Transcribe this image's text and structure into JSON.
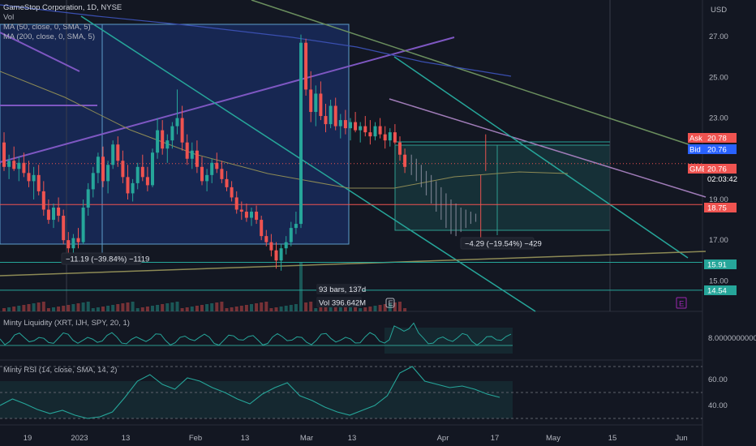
{
  "header": {
    "symbol_line": "GameStop Corporation, 1D, NYSE",
    "vol_label": "Vol",
    "ma50": "MA (50, close, 0, SMA, 5)",
    "ma200": "MA (200, close, 0, SMA, 5)",
    "currency": "USD"
  },
  "price_tags": {
    "ask_label": "Ask",
    "ask_value": "20.78",
    "bid_label": "Bid",
    "bid_value": "20.76",
    "gme_label": "GME",
    "gme_value": "20.76",
    "countdown": "02:03:42",
    "level_1875": "18.75",
    "level_1591": "15.91",
    "level_1454": "14.54"
  },
  "annotations": {
    "range1": "−11.19 (−39.84%) −1119",
    "range2": "−4.29 (−19.54%) −429",
    "bars": "93 bars, 137d",
    "vol": "Vol 396.642M",
    "earnings_icon": "E",
    "earnings_right": "E"
  },
  "indicators": {
    "liquidity_title": "Minty Liquidity (XRT, IJH, SPY, 20, 1)",
    "liquidity_value": "8.0000000000",
    "rsi_title": "Minty RSI (14, close, SMA, 14, 2)",
    "rsi_ticks": [
      "60.00",
      "40.00"
    ]
  },
  "colors": {
    "up": "#26a69a",
    "down": "#ef5350",
    "background": "#131722",
    "ma50": "#8d8a55",
    "ma200": "#3a4fb0",
    "accent": "#2962ff"
  },
  "chart_data": {
    "type": "candlestick",
    "title": "GameStop Corporation, 1D, NYSE",
    "ylabel": "USD",
    "ylim": [
      13.5,
      28.8
    ],
    "y_ticks": [
      27.0,
      25.0,
      23.0,
      19.0,
      17.0,
      15.0
    ],
    "x_ticks": [
      "19",
      "2023",
      "13",
      "Feb",
      "13",
      "Mar",
      "13",
      "Apr",
      "17",
      "May",
      "15",
      "Jun"
    ],
    "candles": [
      {
        "o": 21.8,
        "h": 22.3,
        "l": 20.4,
        "c": 20.6
      },
      {
        "o": 20.6,
        "h": 21.2,
        "l": 20.0,
        "c": 20.9
      },
      {
        "o": 20.9,
        "h": 21.6,
        "l": 20.4,
        "c": 20.5
      },
      {
        "o": 20.5,
        "h": 21.1,
        "l": 19.9,
        "c": 20.8
      },
      {
        "o": 20.8,
        "h": 21.3,
        "l": 20.1,
        "c": 20.3
      },
      {
        "o": 20.3,
        "h": 20.9,
        "l": 19.6,
        "c": 19.9
      },
      {
        "o": 19.9,
        "h": 20.6,
        "l": 19.0,
        "c": 20.2
      },
      {
        "o": 20.2,
        "h": 20.7,
        "l": 19.2,
        "c": 19.4
      },
      {
        "o": 19.4,
        "h": 19.9,
        "l": 18.2,
        "c": 18.5
      },
      {
        "o": 18.5,
        "h": 19.0,
        "l": 17.8,
        "c": 18.0
      },
      {
        "o": 18.0,
        "h": 18.8,
        "l": 17.6,
        "c": 18.6
      },
      {
        "o": 18.6,
        "h": 19.1,
        "l": 17.9,
        "c": 18.2
      },
      {
        "o": 18.2,
        "h": 18.5,
        "l": 16.8,
        "c": 17.0
      },
      {
        "o": 17.0,
        "h": 17.4,
        "l": 16.2,
        "c": 16.6
      },
      {
        "o": 16.6,
        "h": 17.3,
        "l": 16.3,
        "c": 17.1
      },
      {
        "o": 17.1,
        "h": 17.6,
        "l": 16.6,
        "c": 16.9
      },
      {
        "o": 16.9,
        "h": 19.0,
        "l": 16.8,
        "c": 18.6
      },
      {
        "o": 18.6,
        "h": 19.8,
        "l": 18.2,
        "c": 19.5
      },
      {
        "o": 19.5,
        "h": 20.6,
        "l": 19.1,
        "c": 20.3
      },
      {
        "o": 20.3,
        "h": 21.3,
        "l": 19.8,
        "c": 21.1
      },
      {
        "o": 21.1,
        "h": 21.6,
        "l": 19.6,
        "c": 19.9
      },
      {
        "o": 19.9,
        "h": 20.9,
        "l": 19.3,
        "c": 20.7
      },
      {
        "o": 20.7,
        "h": 21.9,
        "l": 20.5,
        "c": 21.7
      },
      {
        "o": 21.7,
        "h": 22.1,
        "l": 20.6,
        "c": 20.9
      },
      {
        "o": 20.9,
        "h": 21.4,
        "l": 19.8,
        "c": 20.1
      },
      {
        "o": 20.1,
        "h": 20.7,
        "l": 19.0,
        "c": 19.3
      },
      {
        "o": 19.3,
        "h": 20.0,
        "l": 18.9,
        "c": 19.8
      },
      {
        "o": 19.8,
        "h": 20.8,
        "l": 19.5,
        "c": 20.6
      },
      {
        "o": 20.6,
        "h": 21.2,
        "l": 19.9,
        "c": 20.1
      },
      {
        "o": 20.1,
        "h": 20.6,
        "l": 19.4,
        "c": 19.7
      },
      {
        "o": 19.7,
        "h": 21.5,
        "l": 19.6,
        "c": 21.3
      },
      {
        "o": 21.3,
        "h": 23.0,
        "l": 21.0,
        "c": 22.4
      },
      {
        "o": 22.4,
        "h": 22.9,
        "l": 21.2,
        "c": 21.5
      },
      {
        "o": 21.5,
        "h": 22.2,
        "l": 20.8,
        "c": 21.9
      },
      {
        "o": 21.9,
        "h": 22.8,
        "l": 21.5,
        "c": 22.6
      },
      {
        "o": 22.6,
        "h": 24.4,
        "l": 22.2,
        "c": 23.0
      },
      {
        "o": 23.0,
        "h": 23.6,
        "l": 21.4,
        "c": 21.8
      },
      {
        "o": 21.8,
        "h": 22.2,
        "l": 20.7,
        "c": 21.0
      },
      {
        "o": 21.0,
        "h": 21.8,
        "l": 20.5,
        "c": 21.4
      },
      {
        "o": 21.4,
        "h": 21.9,
        "l": 20.3,
        "c": 20.6
      },
      {
        "o": 20.6,
        "h": 21.1,
        "l": 19.7,
        "c": 19.9
      },
      {
        "o": 19.9,
        "h": 20.5,
        "l": 19.4,
        "c": 20.2
      },
      {
        "o": 20.2,
        "h": 21.0,
        "l": 19.8,
        "c": 20.8
      },
      {
        "o": 20.8,
        "h": 21.3,
        "l": 20.3,
        "c": 20.5
      },
      {
        "o": 20.5,
        "h": 20.9,
        "l": 19.8,
        "c": 20.0
      },
      {
        "o": 20.0,
        "h": 20.4,
        "l": 19.4,
        "c": 19.6
      },
      {
        "o": 19.6,
        "h": 19.9,
        "l": 18.9,
        "c": 19.1
      },
      {
        "o": 19.1,
        "h": 19.4,
        "l": 18.3,
        "c": 18.5
      },
      {
        "o": 18.5,
        "h": 18.9,
        "l": 18.0,
        "c": 18.4
      },
      {
        "o": 18.4,
        "h": 18.8,
        "l": 17.9,
        "c": 18.1
      },
      {
        "o": 18.1,
        "h": 18.6,
        "l": 17.7,
        "c": 18.4
      },
      {
        "o": 18.4,
        "h": 18.7,
        "l": 17.8,
        "c": 18.0
      },
      {
        "o": 18.0,
        "h": 18.2,
        "l": 17.0,
        "c": 17.2
      },
      {
        "o": 17.2,
        "h": 17.5,
        "l": 16.7,
        "c": 16.9
      },
      {
        "o": 16.9,
        "h": 17.3,
        "l": 16.2,
        "c": 16.5
      },
      {
        "o": 16.5,
        "h": 16.9,
        "l": 15.6,
        "c": 16.0
      },
      {
        "o": 16.0,
        "h": 16.8,
        "l": 15.5,
        "c": 16.6
      },
      {
        "o": 16.6,
        "h": 17.2,
        "l": 16.3,
        "c": 16.9
      },
      {
        "o": 16.9,
        "h": 17.9,
        "l": 16.7,
        "c": 17.6
      },
      {
        "o": 17.6,
        "h": 18.4,
        "l": 17.3,
        "c": 17.8
      },
      {
        "o": 17.8,
        "h": 27.1,
        "l": 17.6,
        "c": 26.7
      },
      {
        "o": 26.7,
        "h": 26.9,
        "l": 24.1,
        "c": 24.4
      },
      {
        "o": 24.4,
        "h": 25.3,
        "l": 22.8,
        "c": 23.3
      },
      {
        "o": 23.3,
        "h": 24.6,
        "l": 22.6,
        "c": 24.2
      },
      {
        "o": 24.2,
        "h": 24.8,
        "l": 22.9,
        "c": 23.1
      },
      {
        "o": 23.1,
        "h": 23.7,
        "l": 22.3,
        "c": 22.7
      },
      {
        "o": 22.7,
        "h": 23.9,
        "l": 22.5,
        "c": 23.6
      },
      {
        "o": 23.6,
        "h": 24.0,
        "l": 22.4,
        "c": 22.6
      },
      {
        "o": 22.6,
        "h": 23.2,
        "l": 22.0,
        "c": 22.9
      },
      {
        "o": 22.9,
        "h": 23.4,
        "l": 22.2,
        "c": 22.5
      },
      {
        "o": 22.5,
        "h": 23.0,
        "l": 21.9,
        "c": 22.8
      },
      {
        "o": 22.8,
        "h": 23.3,
        "l": 22.3,
        "c": 22.4
      },
      {
        "o": 22.4,
        "h": 22.8,
        "l": 21.8,
        "c": 22.6
      },
      {
        "o": 22.6,
        "h": 23.1,
        "l": 22.1,
        "c": 22.3
      },
      {
        "o": 22.3,
        "h": 22.9,
        "l": 21.7,
        "c": 22.1
      },
      {
        "o": 22.1,
        "h": 22.8,
        "l": 21.9,
        "c": 22.6
      },
      {
        "o": 22.6,
        "h": 23.0,
        "l": 22.0,
        "c": 22.2
      },
      {
        "o": 22.2,
        "h": 22.6,
        "l": 21.5,
        "c": 21.9
      },
      {
        "o": 21.9,
        "h": 22.5,
        "l": 21.6,
        "c": 22.3
      },
      {
        "o": 22.3,
        "h": 22.7,
        "l": 21.7,
        "c": 21.8
      },
      {
        "o": 21.8,
        "h": 22.1,
        "l": 20.9,
        "c": 21.2
      },
      {
        "o": 21.2,
        "h": 21.5,
        "l": 20.3,
        "c": 20.6
      }
    ],
    "projection": [
      {
        "h": 21.2,
        "l": 20.2
      },
      {
        "h": 21.0,
        "l": 19.9
      },
      {
        "h": 20.7,
        "l": 19.6
      },
      {
        "h": 20.4,
        "l": 19.2
      },
      {
        "h": 20.2,
        "l": 18.8
      },
      {
        "h": 19.9,
        "l": 18.4
      },
      {
        "h": 19.6,
        "l": 18.0
      },
      {
        "h": 19.3,
        "l": 17.6
      },
      {
        "h": 19.0,
        "l": 17.3
      },
      {
        "h": 18.8,
        "l": 17.2
      },
      {
        "h": 18.6,
        "l": 17.4
      },
      {
        "h": 18.5,
        "l": 17.6
      },
      {
        "h": 18.4,
        "l": 17.8
      },
      {
        "h": 18.3,
        "l": 17.9
      },
      {
        "h": 20.2,
        "l": 17.1
      },
      {
        "h": 22.2,
        "l": 20.4
      }
    ],
    "horizontal_levels": [
      18.75,
      15.91,
      14.54
    ],
    "last_price": 20.76
  }
}
